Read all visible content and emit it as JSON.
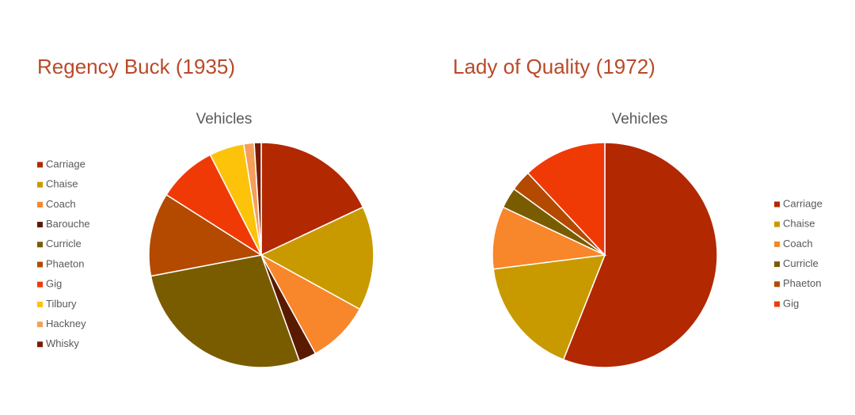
{
  "chart_data": [
    {
      "type": "pie",
      "heading": "Regency Buck (1935)",
      "title": "Vehicles",
      "legend": "left",
      "categories": [
        "Carriage",
        "Chaise",
        "Coach",
        "Barouche",
        "Curricle",
        "Phaeton",
        "Gig",
        "Tilbury",
        "Hackney",
        "Whisky"
      ],
      "values": [
        18,
        15,
        9,
        2.5,
        27.5,
        12,
        8.5,
        5,
        1.5,
        1
      ],
      "colors": [
        "#b22800",
        "#c99a00",
        "#f8862a",
        "#5a1a00",
        "#7a5c00",
        "#b34a00",
        "#f03a06",
        "#fcc30a",
        "#f4a05a",
        "#7b1a05"
      ]
    },
    {
      "type": "pie",
      "heading": "Lady of Quality (1972)",
      "title": "Vehicles",
      "legend": "right",
      "categories": [
        "Carriage",
        "Chaise",
        "Coach",
        "Curricle",
        "Phaeton",
        "Gig"
      ],
      "values": [
        56,
        17,
        9,
        3,
        3,
        12
      ],
      "colors": [
        "#b22800",
        "#c99a00",
        "#f8862a",
        "#7a5c00",
        "#b34a00",
        "#f03a06"
      ]
    }
  ]
}
